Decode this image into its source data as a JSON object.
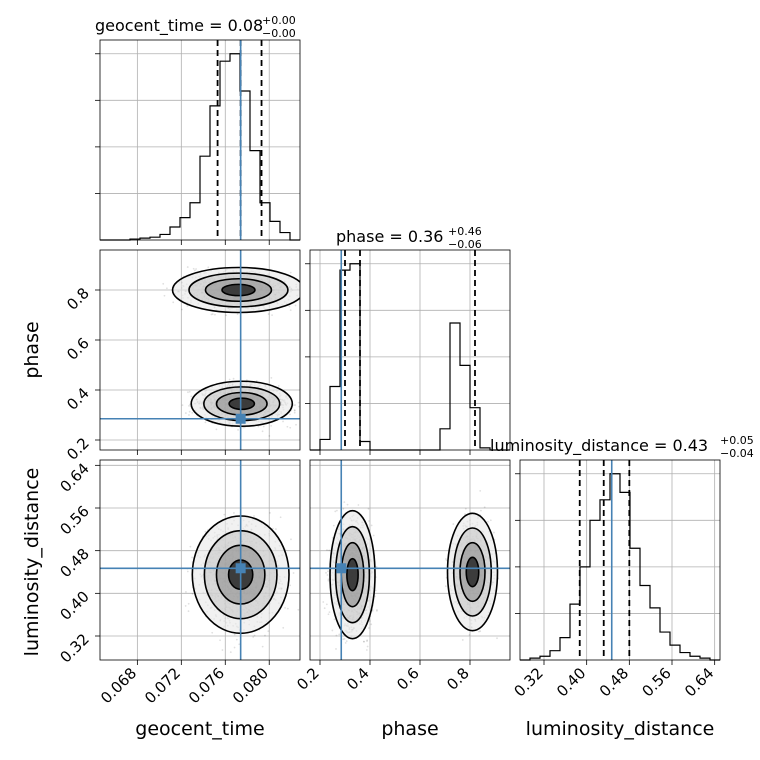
{
  "chart_data": {
    "type": "corner",
    "params": [
      "geocent_time",
      "phase",
      "luminosity_distance"
    ],
    "axis_labels": {
      "geocent_time": "geocent_time",
      "phase": "phase",
      "luminosity_distance": "luminosity_distance"
    },
    "ranges": {
      "geocent_time": [
        0.0646,
        0.0828
      ],
      "phase": [
        0.16,
        0.96
      ],
      "luminosity_distance": [
        0.275,
        0.65
      ]
    },
    "ticks": {
      "geocent_time": [
        "0.068",
        "0.072",
        "0.076",
        "0.080"
      ],
      "phase": [
        "0.2",
        "0.4",
        "0.6",
        "0.8"
      ],
      "phase_left": [
        "0.2",
        "0.4",
        "0.6",
        "0.8"
      ],
      "luminosity_distance": [
        "0.32",
        "0.40",
        "0.48",
        "0.56",
        "0.64"
      ]
    },
    "titles": [
      {
        "name": "geocent_time",
        "median": "0.08",
        "plus": "+0.00",
        "minus": "−0.00"
      },
      {
        "name": "phase",
        "median": "0.36",
        "plus": "+0.46",
        "minus": "−0.06"
      },
      {
        "name": "luminosity_distance",
        "median": "0.43",
        "plus": "+0.05",
        "minus": "−0.04"
      }
    ],
    "truths": {
      "geocent_time": 0.0774,
      "phase": 0.285,
      "luminosity_distance": 0.447
    },
    "quantiles": {
      "geocent_time": [
        0.0753,
        0.0774,
        0.0793
      ],
      "phase": [
        0.3,
        0.36,
        0.82
      ],
      "luminosity_distance": [
        0.387,
        0.432,
        0.48
      ]
    },
    "histograms": {
      "geocent_time": {
        "edges_min": 0.0646,
        "edges_max": 0.0828,
        "counts": [
          0,
          0,
          0,
          0.005,
          0.01,
          0.015,
          0.03,
          0.07,
          0.12,
          0.2,
          0.45,
          0.72,
          0.96,
          1.0,
          0.8,
          0.48,
          0.2,
          0.1,
          0.04,
          0
        ]
      },
      "phase": {
        "edges_min": 0.16,
        "edges_max": 0.96,
        "counts": [
          0,
          0.05,
          0.3,
          0.85,
          0.88,
          0.04,
          0,
          0,
          0,
          0,
          0,
          0,
          0,
          0.1,
          0.6,
          0.4,
          0.2,
          0.01,
          0,
          0
        ]
      },
      "luminosity_distance": {
        "edges_min": 0.275,
        "edges_max": 0.65,
        "counts": [
          0,
          0.01,
          0.02,
          0.05,
          0.12,
          0.3,
          0.5,
          0.75,
          0.86,
          1.0,
          0.9,
          0.6,
          0.4,
          0.28,
          0.15,
          0.08,
          0.04,
          0.02,
          0.01,
          0
        ]
      }
    },
    "density_modes": [
      {
        "x": "geocent_time",
        "y": "phase",
        "peaks": [
          {
            "cx": 0.0775,
            "cy": 0.345,
            "rx": 0.0023,
            "ry": 0.045,
            "weight": 1.0
          },
          {
            "cx": 0.0772,
            "cy": 0.8,
            "rx": 0.003,
            "ry": 0.045,
            "weight": 0.75
          }
        ]
      },
      {
        "x": "geocent_time",
        "y": "luminosity_distance",
        "peaks": [
          {
            "cx": 0.0774,
            "cy": 0.435,
            "rx": 0.0022,
            "ry": 0.055,
            "weight": 1.0
          }
        ]
      },
      {
        "x": "phase",
        "y": "luminosity_distance",
        "peaks": [
          {
            "cx": 0.33,
            "cy": 0.435,
            "rx": 0.045,
            "ry": 0.06,
            "weight": 1.0
          },
          {
            "cx": 0.81,
            "cy": 0.44,
            "rx": 0.05,
            "ry": 0.055,
            "weight": 0.55
          }
        ]
      }
    ],
    "grid": true,
    "colors": {
      "truth": "#4682b4",
      "contour": "#000000",
      "hist": "#000000"
    }
  }
}
